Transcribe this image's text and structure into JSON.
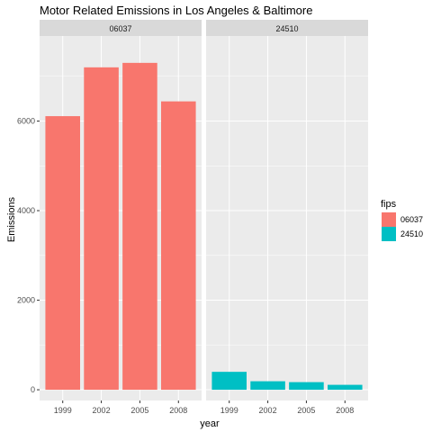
{
  "chart_data": {
    "type": "bar",
    "title": "Motor Related Emissions in Los Angeles & Baltimore",
    "xlabel": "year",
    "ylabel": "Emissions",
    "categories": [
      "1999",
      "2002",
      "2005",
      "2008"
    ],
    "ylim": [
      -240,
      7900
    ],
    "yticks": [
      0,
      2000,
      4000,
      6000
    ],
    "grid": true,
    "facets": [
      {
        "label": "06037",
        "series": "06037",
        "values": [
          6110,
          7200,
          7300,
          6440
        ]
      },
      {
        "label": "24510",
        "series": "24510",
        "values": [
          400,
          190,
          170,
          110
        ]
      }
    ],
    "legend": {
      "title": "fips",
      "placement": "right",
      "entries": [
        {
          "label": "06037",
          "color": "#F8766D"
        },
        {
          "label": "24510",
          "color": "#00BFC4"
        }
      ]
    }
  },
  "colors": {
    "panel_bg": "#EBEBEB",
    "strip_bg": "#D9D9D9",
    "grid_major": "#FFFFFF"
  }
}
